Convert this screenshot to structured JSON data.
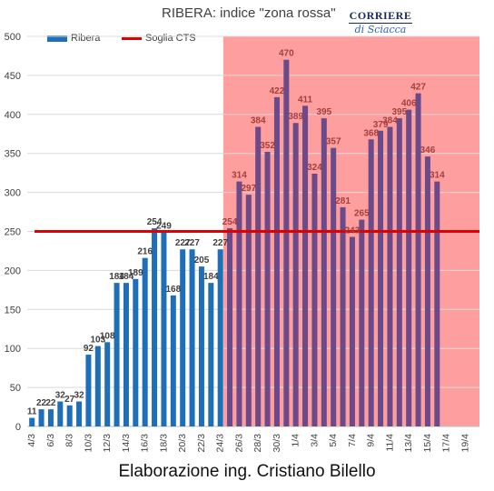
{
  "header": {
    "title": "RIBERA: indice \"zona rossa\"",
    "logo_top": "CORRIERE",
    "logo_bottom": "di Sciacca"
  },
  "footer": {
    "credit": "Elaborazione ing. Cristiano Bilello"
  },
  "colors": {
    "bar_blue": "#1f6fb8",
    "bar_purple": "#6b4a8a",
    "zone_shade": "#ff9e9e",
    "threshold_line": "#e00000",
    "label_dark": "#404040",
    "label_red": "#a33f3f"
  },
  "chart_data": {
    "type": "bar",
    "title": "RIBERA: indice \"zona rossa\"",
    "categories": [
      "4/3",
      "5/3",
      "6/3",
      "7/3",
      "8/3",
      "9/3",
      "10/3",
      "11/3",
      "12/3",
      "13/3",
      "14/3",
      "15/3",
      "16/3",
      "17/3",
      "18/3",
      "19/3",
      "20/3",
      "21/3",
      "22/3",
      "23/3",
      "24/3",
      "25/3",
      "26/3",
      "27/3",
      "28/3",
      "29/3",
      "30/3",
      "31/3",
      "1/4",
      "2/4",
      "3/4",
      "4/4",
      "5/4",
      "6/4",
      "7/4",
      "8/4",
      "9/4",
      "10/4",
      "11/4",
      "12/4",
      "13/4",
      "14/4",
      "15/4",
      "16/4",
      "17/4",
      "18/4",
      "19/4",
      "20/4"
    ],
    "tick_labels": [
      "4/3",
      "6/3",
      "8/3",
      "10/3",
      "12/3",
      "14/3",
      "16/3",
      "18/3",
      "20/3",
      "22/3",
      "24/3",
      "26/3",
      "28/3",
      "30/3",
      "1/4",
      "3/4",
      "5/4",
      "7/4",
      "9/4",
      "11/4",
      "13/4",
      "15/4",
      "17/4",
      "19/4"
    ],
    "series": [
      {
        "name": "Ribera",
        "values": [
          11,
          22,
          22,
          32,
          27,
          32,
          92,
          103,
          108,
          184,
          184,
          189,
          216,
          254,
          249,
          168,
          227,
          227,
          205,
          184,
          227,
          254,
          314,
          297,
          384,
          352,
          422,
          470,
          389,
          411,
          324,
          395,
          357,
          281,
          243,
          265,
          368,
          379,
          384,
          395,
          406,
          427,
          346,
          314,
          null,
          null,
          null,
          null
        ]
      },
      {
        "name": "Soglia CTS",
        "type": "line",
        "value": 250
      }
    ],
    "data_labels": [
      "11",
      "22",
      "22",
      "32",
      "27",
      "32",
      "92",
      "103",
      "108",
      "184",
      "184",
      "189",
      "216",
      "254",
      "249",
      "168",
      "227",
      "227",
      "205",
      "184",
      "227",
      "254",
      "314",
      "297",
      "384",
      "352",
      "422",
      "470",
      "389",
      "411",
      "324",
      "395",
      "357",
      "281",
      "243",
      "265",
      "368",
      "379",
      "384",
      "395",
      "406",
      "427",
      "346",
      "314"
    ],
    "y_ticks": [
      "0",
      "50",
      "100",
      "150",
      "200",
      "250",
      "300",
      "350",
      "400",
      "450",
      "500"
    ],
    "ylim": [
      0,
      500
    ],
    "grid": true,
    "legend": "top-left",
    "shaded_from_category": "25/3"
  }
}
